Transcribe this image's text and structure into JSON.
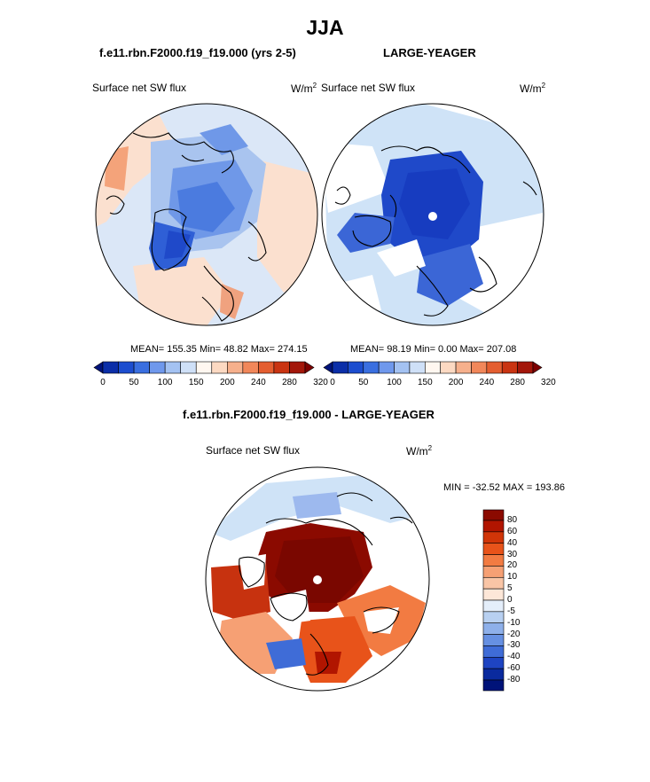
{
  "figure": {
    "title": "JJA",
    "colors": {
      "ocean_ice_blue": "#3b66d6",
      "deep_blue": "#1f49c9",
      "light_blue": "#cfe3f7",
      "pale_peach": "#fbe0cf",
      "dark_red": "#8b0a00",
      "land_outline": "#000000"
    }
  },
  "panels": {
    "left": {
      "title": "f.e11.rbn.F2000.f19_f19.000 (yrs 2-5)",
      "variable": "Surface net SW flux",
      "units": "W/m",
      "units_exp": "2",
      "stats": "MEAN= 155.35  Min=  48.82  Max= 274.15",
      "colorbar_ticks": [
        "0",
        "50",
        "100",
        "150",
        "200",
        "240",
        "280",
        "320"
      ],
      "colorbar_colors": [
        "#00137a",
        "#0b2ea8",
        "#1c4dcf",
        "#3a6fe0",
        "#6f98ec",
        "#a4c2f2",
        "#cfe0f7",
        "#fff7f0",
        "#fcd9c2",
        "#f6b08c",
        "#f1875a",
        "#e45e30",
        "#c93412",
        "#a3170a",
        "#7d0000"
      ]
    },
    "right": {
      "title": "LARGE-YEAGER",
      "variable": "Surface net SW flux",
      "units": "W/m",
      "units_exp": "2",
      "stats": "MEAN=  98.19  Min=   0.00  Max= 207.08",
      "colorbar_ticks": [
        "0",
        "50",
        "100",
        "150",
        "200",
        "240",
        "280",
        "320"
      ],
      "colorbar_colors": [
        "#00137a",
        "#0b2ea8",
        "#1c4dcf",
        "#3a6fe0",
        "#6f98ec",
        "#a4c2f2",
        "#cfe0f7",
        "#fff7f0",
        "#fcd9c2",
        "#f6b08c",
        "#f1875a",
        "#e45e30",
        "#c93412",
        "#a3170a",
        "#7d0000"
      ]
    },
    "diff": {
      "title": "f.e11.rbn.F2000.f19_f19.000 - LARGE-YEAGER",
      "variable": "Surface net SW flux",
      "units": "W/m",
      "units_exp": "2",
      "stats": "MIN = -32.52 MAX = 193.86",
      "colorbar_labels": [
        "80",
        "60",
        "40",
        "30",
        "20",
        "10",
        "5",
        "0",
        "-5",
        "-10",
        "-20",
        "-30",
        "-40",
        "-60",
        "-80"
      ],
      "colorbar_colors": [
        "#8b0a00",
        "#b11500",
        "#d13508",
        "#e8531a",
        "#f27b42",
        "#f6a074",
        "#f9c5a6",
        "#fde7d8",
        "#e4eefa",
        "#b8d0f1",
        "#8eb0ea",
        "#6690e2",
        "#3f6cd7",
        "#1e44c2",
        "#0a2a9e",
        "#001379"
      ]
    }
  }
}
